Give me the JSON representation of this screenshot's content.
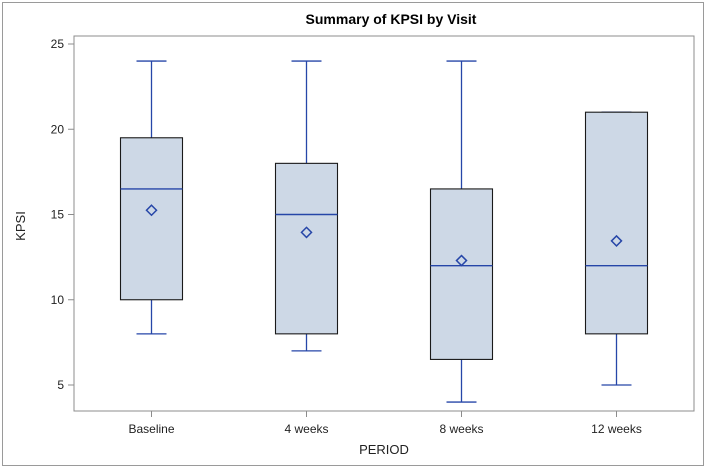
{
  "chart_data": {
    "type": "boxplot",
    "title": "Summary of KPSI by Visit",
    "xlabel": "PERIOD",
    "ylabel": "KPSI",
    "ylim": [
      3.5,
      25.8
    ],
    "yticks": [
      5,
      10,
      15,
      20,
      25
    ],
    "categories": [
      "Baseline",
      "4 weeks",
      "8 weeks",
      "12 weeks"
    ],
    "boxes": [
      {
        "category": "Baseline",
        "min": 8,
        "q1": 10,
        "median": 16.5,
        "q3": 19.5,
        "max": 24,
        "mean": 15.25
      },
      {
        "category": "4 weeks",
        "min": 7,
        "q1": 8,
        "median": 15,
        "q3": 18,
        "max": 24,
        "mean": 13.95
      },
      {
        "category": "8 weeks",
        "min": 4,
        "q1": 6.5,
        "median": 12,
        "q3": 16.5,
        "max": 24,
        "mean": 12.3
      },
      {
        "category": "12 weeks",
        "min": 5,
        "q1": 8,
        "median": 12,
        "q3": 21,
        "max": 21,
        "mean": 13.45
      }
    ],
    "grid": false,
    "colors": {
      "box_fill": "#cdd8e6",
      "box_edge": "#1a1a1a",
      "whisker": "#2646a8",
      "median": "#2646a8",
      "mean_marker": "#2646a8",
      "axis": "#8c8c8c"
    }
  }
}
